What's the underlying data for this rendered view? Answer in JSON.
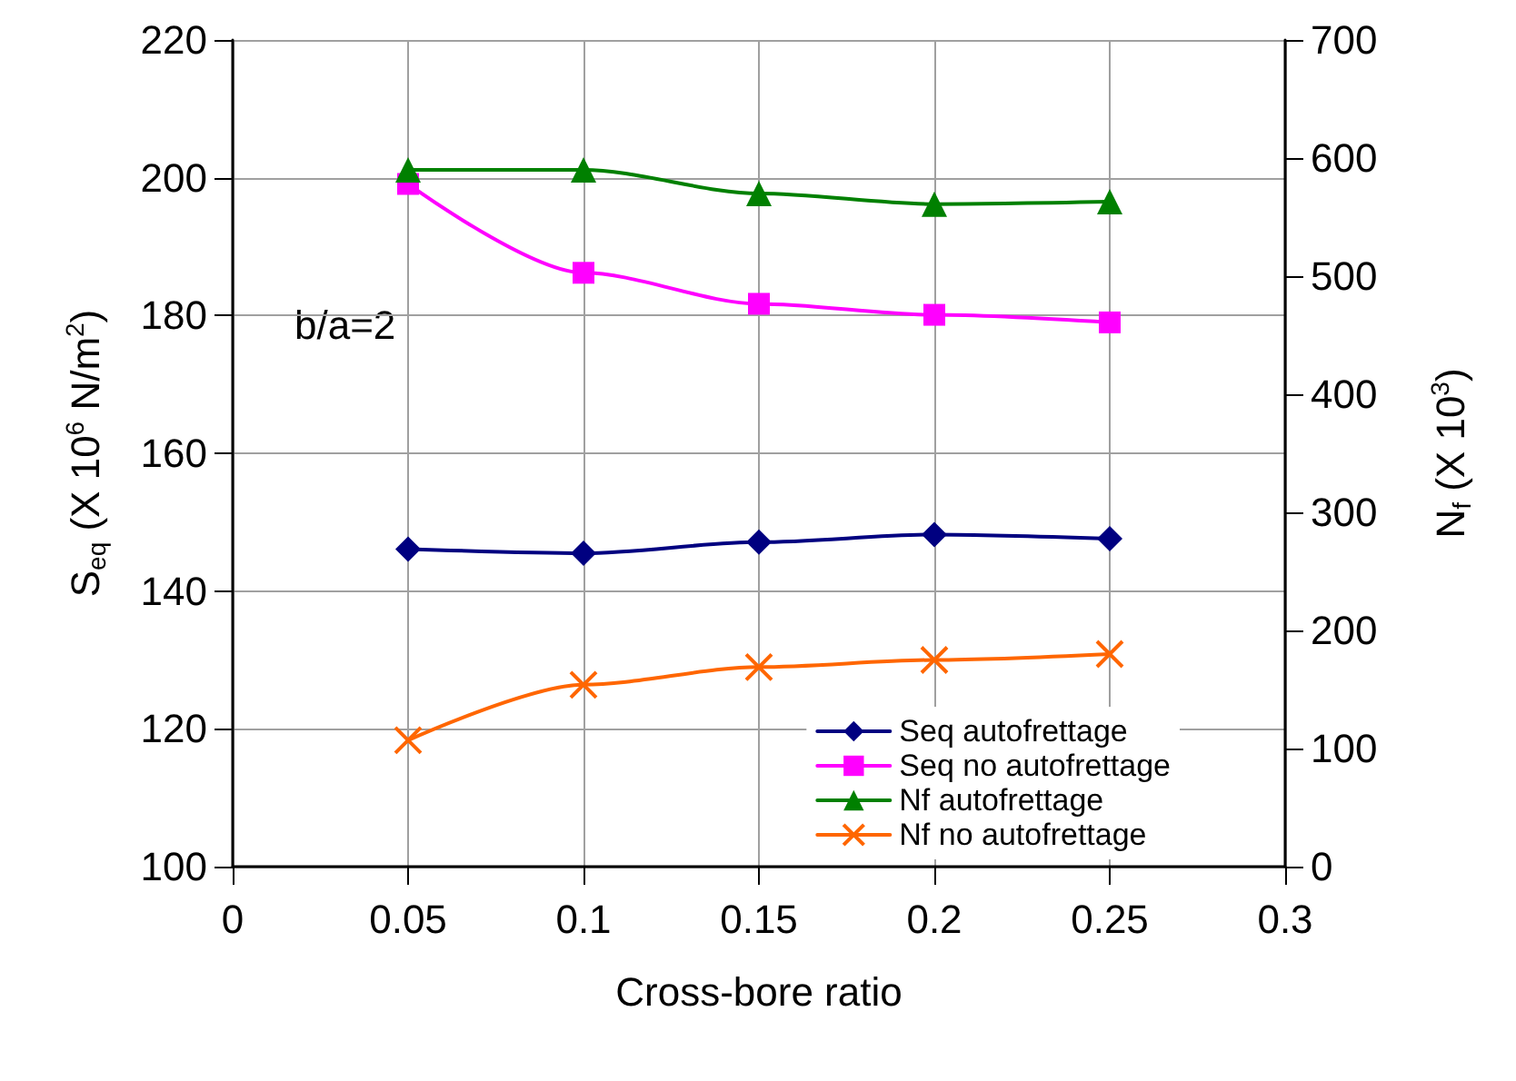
{
  "chart_data": {
    "type": "line",
    "xlabel": "Cross-bore ratio",
    "ylabel": "S$_{eq}$ (X 10$^{6}$ N/m$^{2}$)",
    "y2label": "N$_{f}$ (X 10$^{3}$)",
    "x": [
      0.05,
      0.1,
      0.15,
      0.2,
      0.25
    ],
    "series": [
      {
        "name": "Seq autofrettage",
        "color": "#000080",
        "marker": "diamond",
        "values": [
          146.1,
          145.5,
          147.1,
          148.2,
          147.6
        ]
      },
      {
        "name": "Seq no autofrettage",
        "color": "#ff00ff",
        "marker": "square",
        "values": [
          199.1,
          186.2,
          181.7,
          180.1,
          179.0
        ]
      },
      {
        "name": "Nf autofrettage",
        "color": "#008000",
        "marker": "triangle",
        "axis": "y2",
        "values": [
          590,
          590,
          570,
          561,
          563
        ]
      },
      {
        "name": "Nf no autofrettage",
        "color": "#ff6600",
        "marker": "cross",
        "axis": "y2",
        "values": [
          107,
          154,
          169,
          175,
          180
        ]
      }
    ],
    "xlim": [
      0,
      0.3
    ],
    "xticks": [
      0,
      0.05,
      0.1,
      0.15,
      0.2,
      0.25,
      0.3
    ],
    "ylim": [
      100,
      220
    ],
    "yticks": [
      100,
      120,
      140,
      160,
      180,
      200,
      220
    ],
    "y2lim": [
      0,
      700
    ],
    "y2ticks": [
      0,
      100,
      200,
      300,
      400,
      500,
      600,
      700
    ],
    "annotations": [
      "b/a=2"
    ],
    "grid": true,
    "legend": "bottom right",
    "line_style": "solid"
  }
}
